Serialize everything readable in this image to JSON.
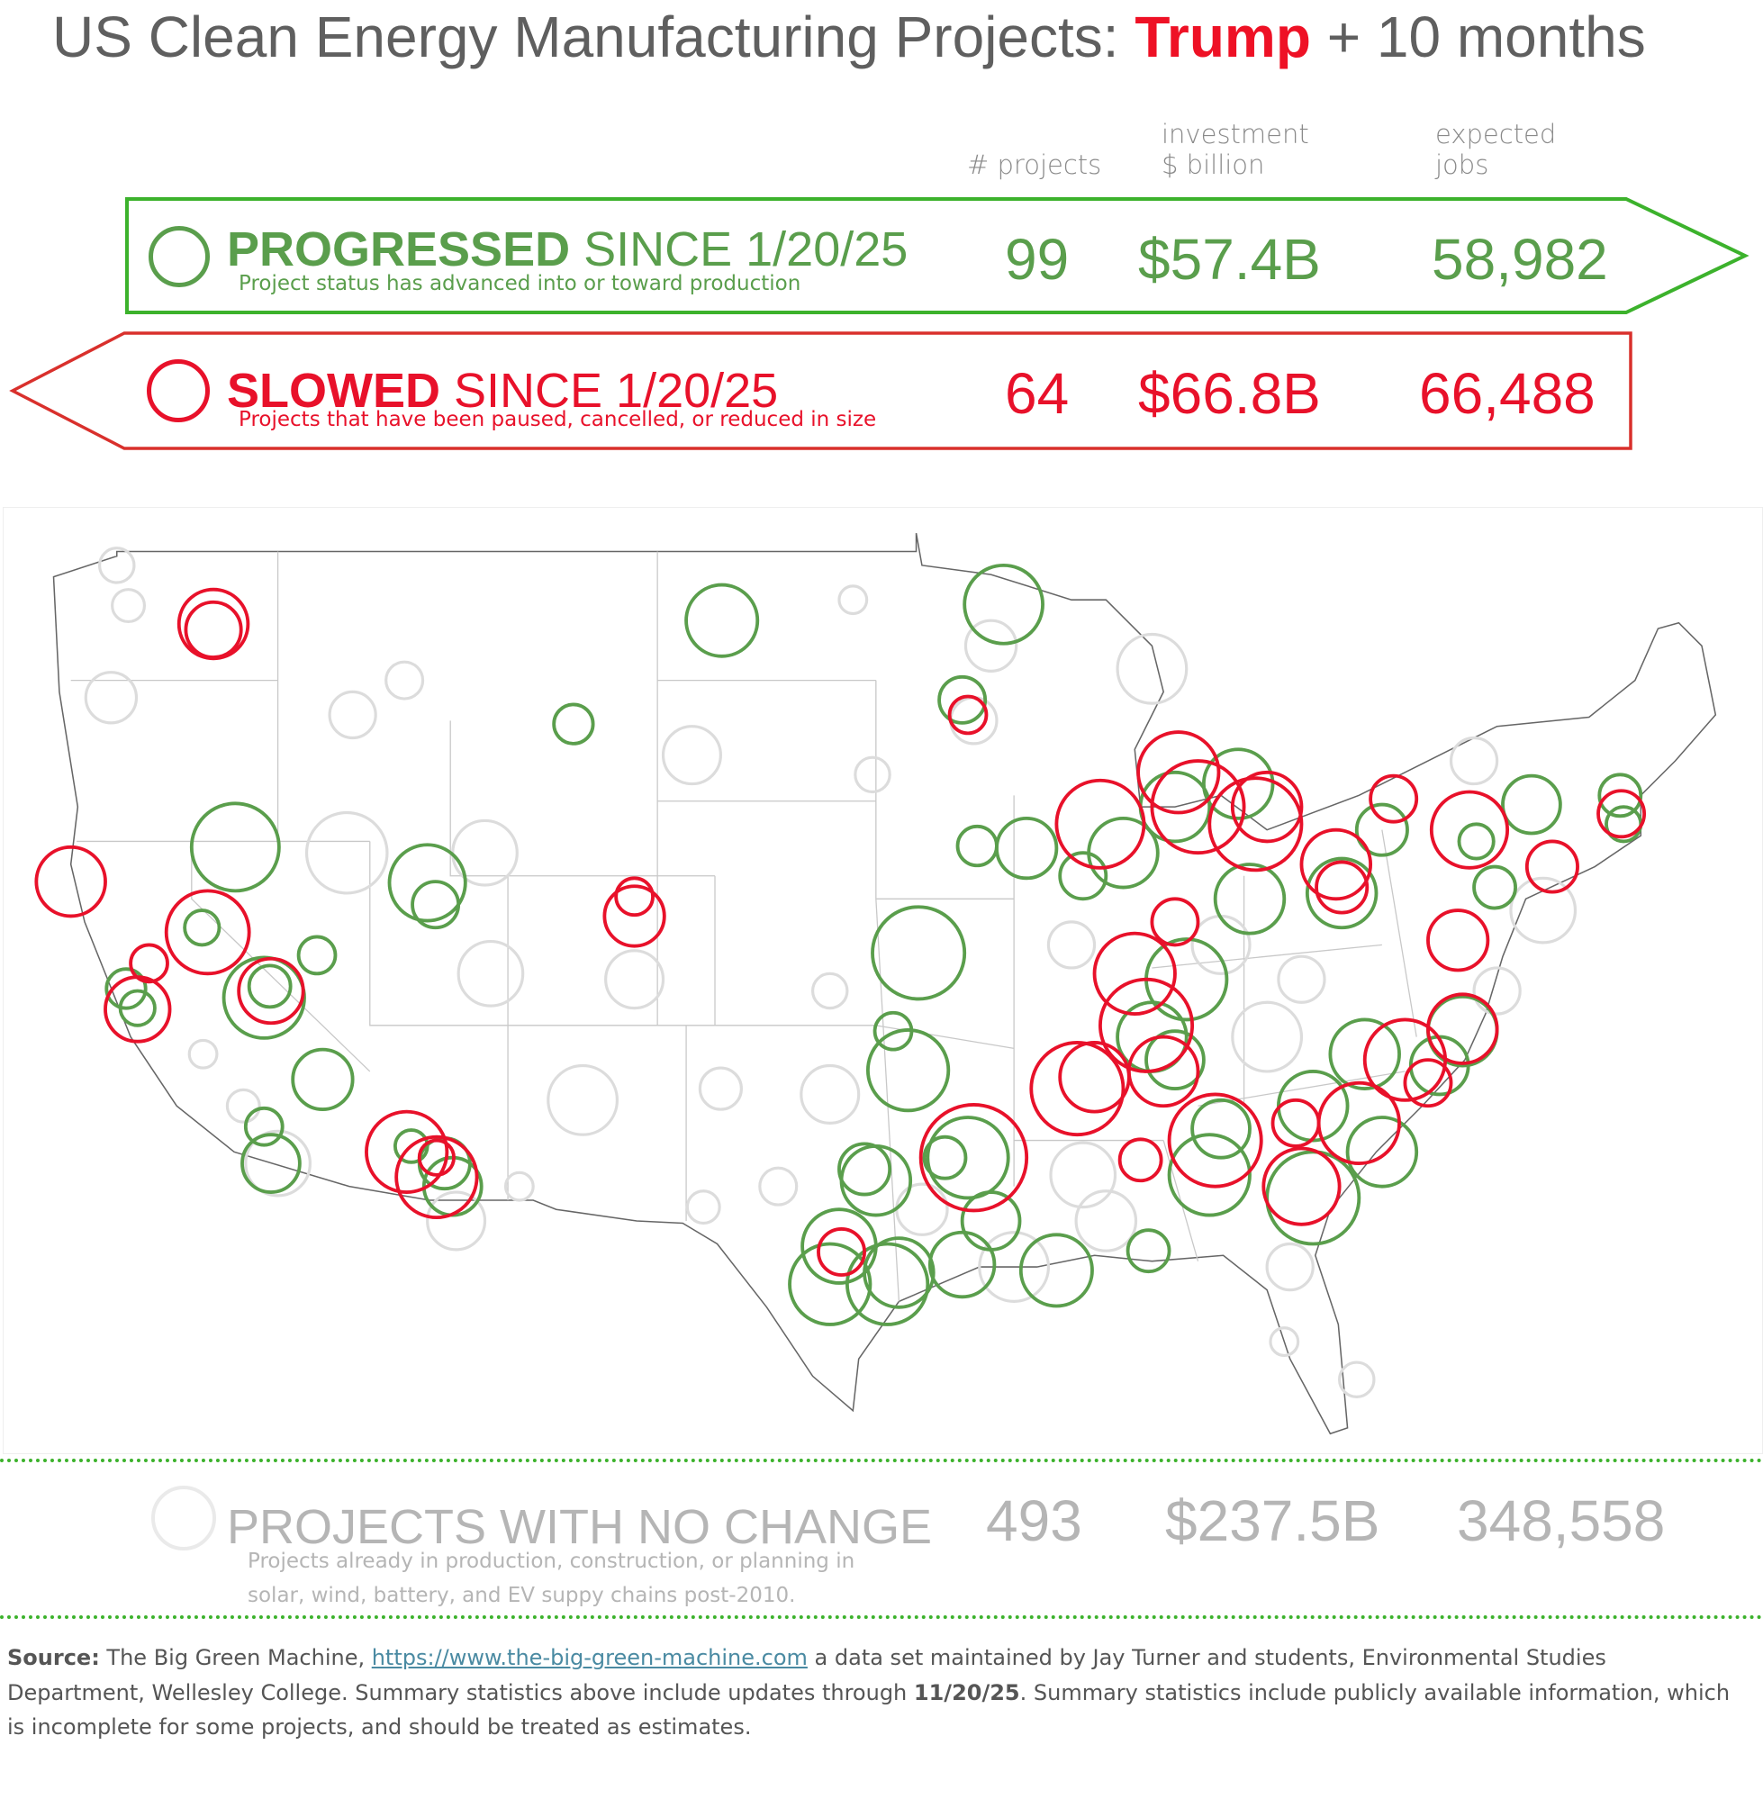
{
  "title": {
    "prefix": "US Clean Energy Manufacturing Projects: ",
    "highlight": "Trump",
    "suffix": " + 10 months"
  },
  "columns": {
    "projects": "# projects",
    "investment_line1": "investment",
    "investment_line2": "$ billion",
    "jobs_line1": "expected",
    "jobs_line2": "jobs"
  },
  "progressed": {
    "label_bold": "PROGRESSED",
    "label_rest": " SINCE 1/20/25",
    "subtitle": "Project status has advanced into or toward production",
    "projects": "99",
    "investment": "$57.4B",
    "jobs": "58,982",
    "color": "#5a9e4c"
  },
  "slowed": {
    "label_bold": "SLOWED",
    "label_rest": " SINCE 1/20/25",
    "subtitle": "Projects that have been paused, cancelled, or reduced in size",
    "projects": "64",
    "investment": "$66.8B",
    "jobs": "66,488",
    "color": "#e8112a"
  },
  "no_change": {
    "label": "PROJECTS WITH NO CHANGE",
    "subtitle_line1": "Projects already in production, construction, or planning in",
    "subtitle_line2": "solar, wind, battery, and EV suppy chains post-2010.",
    "projects": "493",
    "investment": "$237.5B",
    "jobs": "348,558",
    "color": "#b5b5b5"
  },
  "source": {
    "label": "Source:",
    "text1": " The Big Green Machine, ",
    "link": "https://www.the-big-green-machine.com",
    "text2": " a data set maintained by Jay Turner and students, Environmental Studies Department, Wellesley College.  Summary statistics above include updates through ",
    "date": "11/20/25",
    "text3": ".  Summary statistics include publicly available information, which is incomplete for some projects, and should be treated as estimates."
  }
}
